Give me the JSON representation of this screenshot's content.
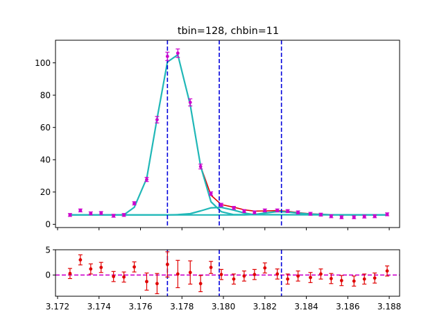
{
  "chart_data": [
    {
      "type": "line",
      "title": "tbin=128, chbin=11",
      "xlabel": "",
      "ylabel": "",
      "xlim": [
        3.1719,
        3.1885
      ],
      "ylim": [
        -2,
        114
      ],
      "yticks": [
        0,
        20,
        40,
        60,
        80,
        100
      ],
      "ytick_labels": [
        "0",
        "20",
        "40",
        "60",
        "80",
        "100"
      ],
      "grid": false,
      "vlines": [
        3.1773,
        3.1798,
        3.1828
      ],
      "data_points": {
        "name": "",
        "color": "#cc00cc",
        "x": [
          3.1726,
          3.1731,
          3.1736,
          3.1741,
          3.1747,
          3.1752,
          3.1757,
          3.1763,
          3.1768,
          3.1773,
          3.1778,
          3.1784,
          3.1789,
          3.1794,
          3.1799,
          3.1805,
          3.181,
          3.1815,
          3.182,
          3.1826,
          3.1831,
          3.1836,
          3.1842,
          3.1847,
          3.1852,
          3.1857,
          3.1863,
          3.1868,
          3.1873,
          3.1879
        ],
        "y": [
          5.8,
          8.6,
          6.8,
          7.0,
          5.3,
          5.8,
          13.0,
          27.8,
          64.8,
          104.0,
          106.0,
          75.5,
          35.8,
          19.0,
          12.0,
          10.2,
          8.2,
          7.4,
          8.6,
          8.6,
          8.2,
          7.4,
          6.5,
          6.0,
          5.0,
          4.4,
          4.4,
          4.8,
          5.0,
          6.2
        ],
        "err": [
          0.9,
          0.9,
          0.9,
          0.9,
          0.9,
          0.9,
          1.0,
          1.3,
          2.0,
          2.6,
          2.6,
          2.2,
          1.5,
          1.1,
          1.0,
          0.9,
          0.9,
          0.9,
          0.9,
          0.9,
          0.9,
          0.9,
          0.9,
          0.9,
          0.9,
          0.9,
          0.9,
          0.9,
          0.9,
          0.9
        ]
      },
      "series": [
        {
          "name": "",
          "color": "#e00000",
          "x": [
            3.1726,
            3.1741,
            3.1752,
            3.1757,
            3.1763,
            3.1768,
            3.1773,
            3.1778,
            3.1784,
            3.1789,
            3.1794,
            3.1799,
            3.1805,
            3.181,
            3.1815,
            3.182,
            3.1826,
            3.1831,
            3.1836,
            3.1842,
            3.1852,
            3.1863,
            3.1879
          ],
          "y": [
            5.8,
            5.8,
            5.9,
            10.5,
            28.5,
            65.5,
            100.5,
            105.0,
            74.0,
            36.0,
            18.0,
            12.2,
            10.6,
            9.0,
            8.2,
            8.3,
            8.5,
            8.0,
            7.3,
            6.5,
            6.0,
            5.9,
            5.8
          ]
        },
        {
          "name": "",
          "color": "#20b8b8",
          "x": [
            3.1726,
            3.1741,
            3.1752,
            3.1757,
            3.1763,
            3.1768,
            3.1773,
            3.1778,
            3.1784,
            3.1789,
            3.1794,
            3.1799,
            3.1805,
            3.1879
          ],
          "y": [
            5.8,
            5.8,
            5.9,
            10.5,
            28.5,
            65.5,
            100.5,
            105.0,
            74.0,
            36.0,
            14.0,
            7.8,
            6.0,
            5.8
          ]
        },
        {
          "name": "",
          "color": "#20b8b8",
          "x": [
            3.1726,
            3.1773,
            3.1778,
            3.1784,
            3.1789,
            3.1794,
            3.1799,
            3.1805,
            3.181,
            3.1815,
            3.1879
          ],
          "y": [
            5.8,
            5.8,
            6.0,
            6.6,
            8.3,
            10.2,
            10.5,
            8.8,
            7.0,
            6.0,
            5.8
          ]
        },
        {
          "name": "",
          "color": "#20b8b8",
          "x": [
            3.1726,
            3.181,
            3.1815,
            3.182,
            3.1826,
            3.1831,
            3.1836,
            3.1842,
            3.1852,
            3.1879
          ],
          "y": [
            5.8,
            5.8,
            6.1,
            7.0,
            7.9,
            7.6,
            7.0,
            6.3,
            5.9,
            5.8
          ]
        }
      ]
    },
    {
      "type": "scatter",
      "title": "",
      "xlabel": "",
      "ylabel": "",
      "xlim": [
        3.1719,
        3.1885
      ],
      "ylim": [
        -4.2,
        5.0
      ],
      "xticks": [
        3.172,
        3.174,
        3.176,
        3.178,
        3.18,
        3.182,
        3.184,
        3.186,
        3.188
      ],
      "xtick_labels": [
        "3.172",
        "3.174",
        "3.176",
        "3.178",
        "3.180",
        "3.182",
        "3.184",
        "3.186",
        "3.188"
      ],
      "yticks": [
        0,
        5
      ],
      "ytick_labels": [
        "0",
        "5"
      ],
      "grid": false,
      "hline": 0,
      "hline_color": "#cc00cc",
      "vlines": [
        3.1773,
        3.1798,
        3.1828
      ],
      "residuals": {
        "name": "",
        "color": "#e00000",
        "x": [
          3.1726,
          3.1731,
          3.1736,
          3.1741,
          3.1747,
          3.1752,
          3.1757,
          3.1763,
          3.1768,
          3.1773,
          3.1778,
          3.1784,
          3.1789,
          3.1794,
          3.1799,
          3.1805,
          3.181,
          3.1815,
          3.182,
          3.1826,
          3.1831,
          3.1836,
          3.1842,
          3.1847,
          3.1852,
          3.1857,
          3.1863,
          3.1868,
          3.1873,
          3.1879
        ],
        "y": [
          0.3,
          3.0,
          1.2,
          1.5,
          -0.3,
          -0.4,
          1.6,
          -1.3,
          -1.7,
          2.1,
          0.2,
          0.5,
          -1.7,
          1.5,
          0.1,
          -0.8,
          -0.2,
          0.1,
          1.4,
          0.2,
          -0.8,
          -0.2,
          -0.5,
          0.2,
          -0.7,
          -1.1,
          -1.2,
          -0.8,
          -0.6,
          0.8
        ],
        "err": [
          1.0,
          1.0,
          1.0,
          1.0,
          1.0,
          1.0,
          1.0,
          1.7,
          2.0,
          2.5,
          2.7,
          2.3,
          1.6,
          1.2,
          1.0,
          1.0,
          1.0,
          1.0,
          1.0,
          1.0,
          1.0,
          1.0,
          1.0,
          1.0,
          1.0,
          1.0,
          1.0,
          1.0,
          1.0,
          1.0
        ]
      }
    }
  ]
}
